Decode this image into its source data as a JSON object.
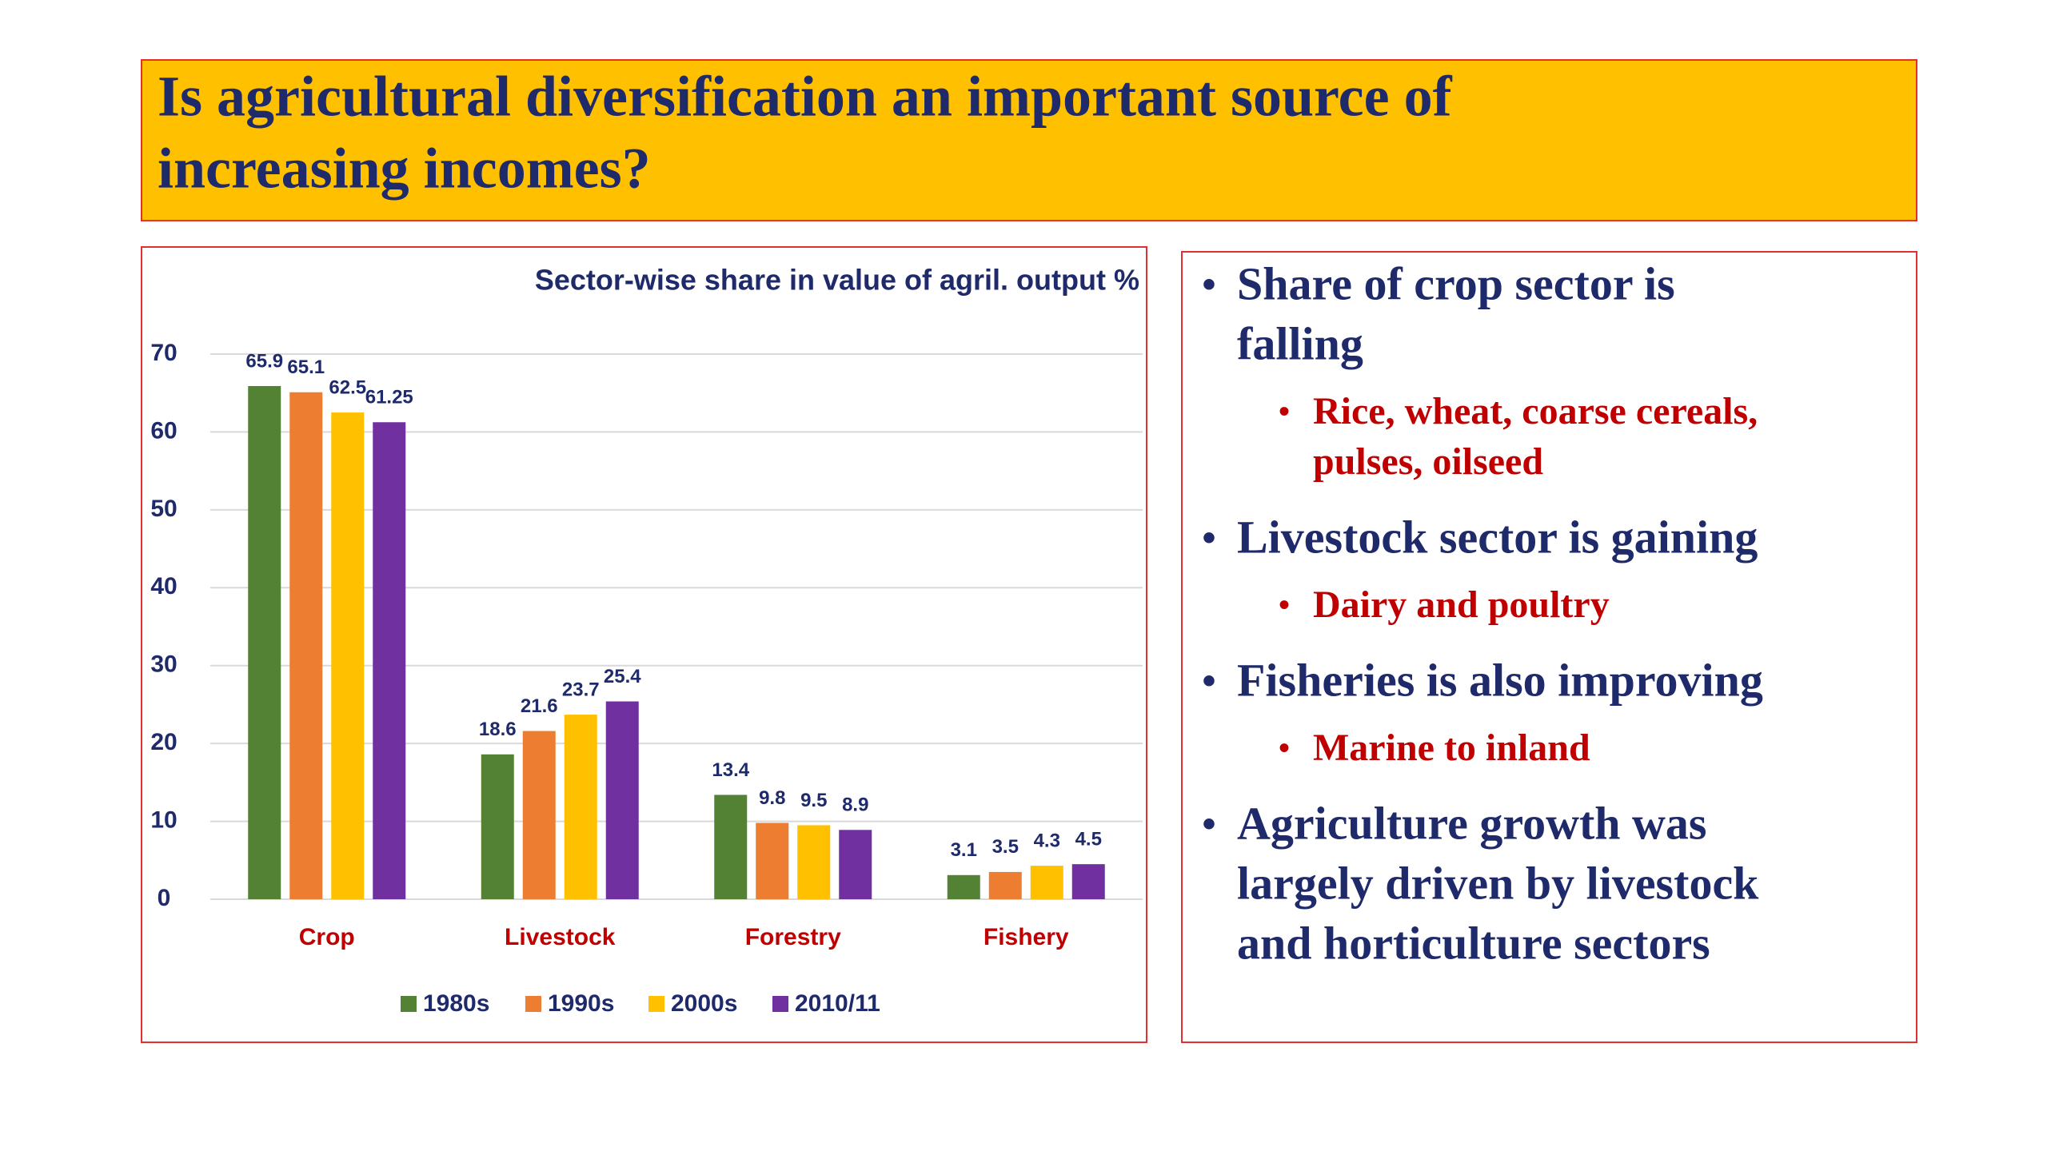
{
  "header": {
    "title": [
      "Is agricultural diversification an important source of",
      "increasing incomes?"
    ]
  },
  "chart_data": {
    "type": "bar",
    "title": "Sector-wise share in value of agril. output %",
    "categories": [
      "Crop",
      "Livestock",
      "Forestry",
      "Fishery"
    ],
    "series": [
      {
        "name": "1980s",
        "color": "#548235",
        "values": [
          65.9,
          18.6,
          13.4,
          3.1
        ]
      },
      {
        "name": "1990s",
        "color": "#ED7D31",
        "values": [
          65.1,
          21.6,
          9.8,
          3.5
        ]
      },
      {
        "name": "2000s",
        "color": "#FFC000",
        "values": [
          62.5,
          23.7,
          9.5,
          4.3
        ]
      },
      {
        "name": "2010/11",
        "color": "#7030A0",
        "values": [
          61.25,
          25.4,
          8.9,
          4.5
        ]
      }
    ],
    "ylim": [
      0,
      70
    ],
    "yticks": [
      0,
      10,
      20,
      30,
      40,
      50,
      60,
      70
    ],
    "grid": true,
    "legend": "bottom"
  },
  "bullets": [
    {
      "text": [
        "Share of  crop sector is",
        "falling"
      ],
      "sub": [
        {
          "text": [
            "Rice, wheat, coarse cereals,",
            "pulses, oilseed"
          ]
        }
      ]
    },
    {
      "text": [
        "Livestock sector is gaining"
      ],
      "sub": [
        {
          "text": [
            "Dairy and poultry"
          ]
        }
      ]
    },
    {
      "text": [
        "Fisheries is also improving"
      ],
      "sub": [
        {
          "text": [
            "Marine to inland"
          ]
        }
      ]
    },
    {
      "text": [
        "Agriculture growth was",
        "largely driven by livestock",
        "and horticulture sectors"
      ],
      "sub": []
    }
  ]
}
